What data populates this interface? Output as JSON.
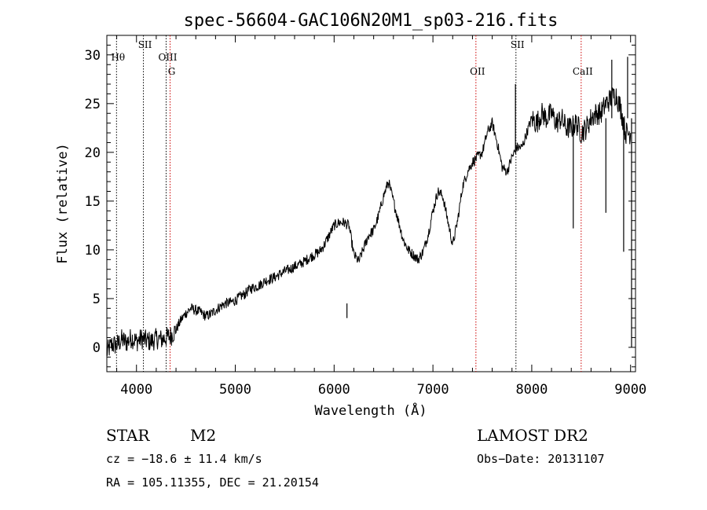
{
  "chart_data": {
    "type": "line",
    "title": "spec-56604-GAC106N20M1_sp03-216.fits",
    "xlabel": "Wavelength (Å)",
    "ylabel": "Flux (relative)",
    "xlim": [
      3700,
      9050
    ],
    "ylim": [
      -2.5,
      32
    ],
    "xticks": [
      4000,
      5000,
      6000,
      7000,
      8000,
      9000
    ],
    "yticks": [
      0,
      5,
      10,
      15,
      20,
      25,
      30
    ],
    "xtick_labels": [
      "4000",
      "5000",
      "6000",
      "7000",
      "8000",
      "9000"
    ],
    "ytick_labels": [
      "0",
      "5",
      "10",
      "15",
      "20",
      "25",
      "30"
    ],
    "grid": false,
    "series": [
      {
        "color": "#000000",
        "x": [
          3700,
          3750,
          3800,
          3850,
          3900,
          3950,
          4000,
          4050,
          4100,
          4150,
          4200,
          4250,
          4300,
          4350,
          4400,
          4450,
          4500,
          4550,
          4600,
          4650,
          4700,
          4750,
          4800,
          4850,
          4900,
          4950,
          5000,
          5050,
          5100,
          5150,
          5200,
          5250,
          5300,
          5350,
          5400,
          5450,
          5500,
          5550,
          5600,
          5650,
          5700,
          5750,
          5800,
          5850,
          5900,
          5950,
          6000,
          6050,
          6100,
          6150,
          6200,
          6250,
          6300,
          6350,
          6400,
          6450,
          6500,
          6550,
          6600,
          6650,
          6700,
          6750,
          6800,
          6850,
          6900,
          6950,
          7000,
          7050,
          7100,
          7150,
          7200,
          7250,
          7300,
          7350,
          7400,
          7450,
          7500,
          7550,
          7600,
          7650,
          7700,
          7750,
          7800,
          7850,
          7900,
          7950,
          8000,
          8050,
          8100,
          8150,
          8200,
          8250,
          8300,
          8350,
          8400,
          8450,
          8500,
          8550,
          8600,
          8650,
          8700,
          8750,
          8800,
          8850,
          8900,
          8950,
          9000
        ],
        "y": [
          -0.5,
          0.3,
          0.2,
          0.8,
          0.5,
          1.0,
          0.6,
          0.9,
          0.7,
          0.6,
          0.9,
          0.8,
          1.0,
          1.2,
          1.8,
          2.8,
          3.5,
          4.0,
          3.8,
          3.6,
          3.2,
          3.4,
          3.8,
          4.2,
          4.5,
          4.6,
          4.8,
          5.2,
          5.5,
          6.0,
          6.2,
          6.4,
          6.8,
          7.0,
          7.2,
          7.5,
          7.8,
          8.0,
          8.3,
          8.5,
          8.8,
          9.2,
          9.5,
          9.8,
          10.5,
          11.5,
          12.5,
          12.8,
          12.8,
          12.5,
          9.5,
          8.8,
          10.2,
          11.5,
          12.0,
          13.5,
          15.5,
          17.0,
          15.0,
          13.0,
          11.0,
          10.0,
          9.5,
          9.0,
          9.8,
          11.5,
          14.0,
          16.0,
          15.5,
          13.0,
          10.5,
          13.0,
          16.5,
          18.0,
          19.0,
          19.5,
          20.0,
          22.0,
          23.0,
          21.0,
          18.5,
          18.0,
          19.5,
          20.5,
          20.5,
          22.0,
          23.5,
          23.0,
          24.0,
          23.5,
          24.0,
          23.0,
          23.5,
          22.5,
          22.5,
          23.0,
          22.0,
          22.5,
          23.5,
          24.0,
          24.0,
          25.0,
          25.5,
          26.0,
          24.5,
          22.0,
          22.0
        ]
      }
    ],
    "spikes": [
      {
        "x": 6130,
        "y": 3.0
      },
      {
        "x": 8420,
        "y": 12.2
      },
      {
        "x": 8750,
        "y": 13.8
      },
      {
        "x": 8810,
        "y": 29.5
      },
      {
        "x": 8930,
        "y": 9.8
      },
      {
        "x": 8970,
        "y": 29.8
      },
      {
        "x": 9010,
        "y": 0.0
      },
      {
        "x": 7835,
        "y": 27.0
      }
    ],
    "lines": [
      {
        "name": "Hθ",
        "x": 3798,
        "color": "#000000",
        "label_row": 1
      },
      {
        "name": "SII",
        "x": 4070,
        "color": "#000000",
        "label_row": 0
      },
      {
        "name": "OIII",
        "x": 4300,
        "color": "#000000",
        "label_row": 1
      },
      {
        "name": "G",
        "x": 4340,
        "color": "#cc0000",
        "label_row": 2
      },
      {
        "name": "OII",
        "x": 7435,
        "color": "#cc0000",
        "label_row": 2
      },
      {
        "name": "SII",
        "x": 7840,
        "color": "#000000",
        "label_row": 0
      },
      {
        "name": "CaII",
        "x": 8500,
        "color": "#cc0000",
        "label_row": 2
      }
    ]
  },
  "info": {
    "class": "STAR",
    "subclass": "M2",
    "survey": "LAMOST DR2",
    "cz": "cz = −18.6 ± 11.4 km/s",
    "obs_date": "Obs−Date: 20131107",
    "coords": "RA = 105.11355, DEC =  21.20154"
  }
}
